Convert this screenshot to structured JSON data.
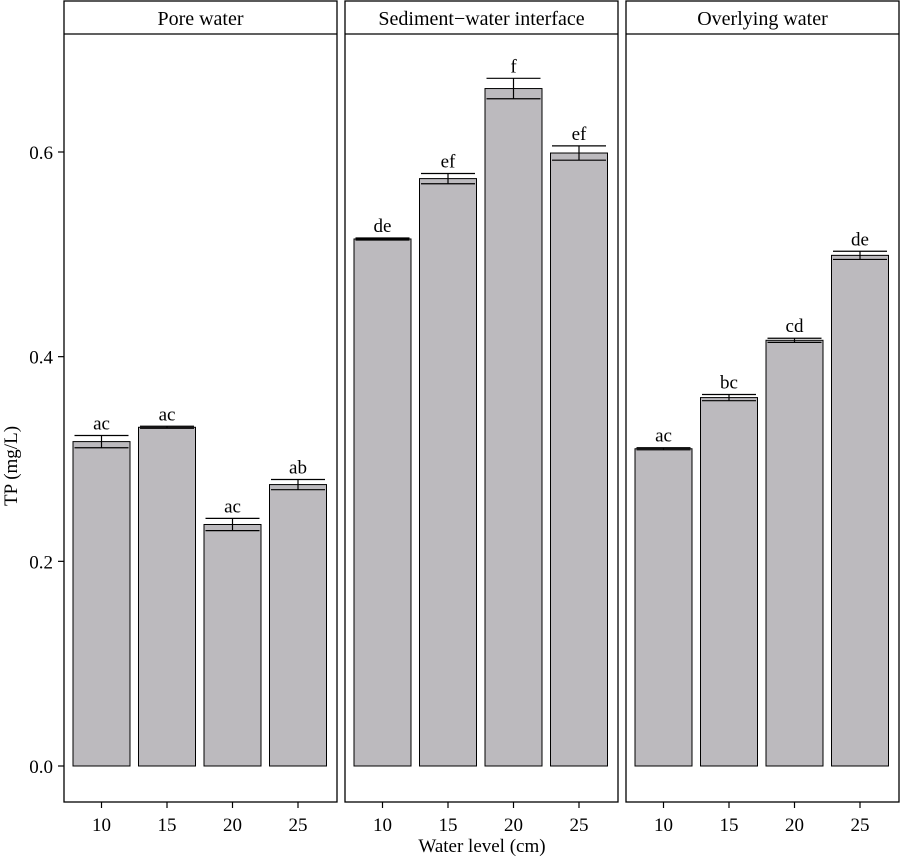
{
  "chart_data": {
    "type": "bar",
    "xlabel": "Water level (cm)",
    "ylabel": "TP (mg/L)",
    "ylim": [
      -0.035,
      0.72
    ],
    "yticks": [
      "0.0",
      "0.2",
      "0.4",
      "0.6"
    ],
    "ytick_values": [
      0.0,
      0.2,
      0.4,
      0.6
    ],
    "categories": [
      "10",
      "15",
      "20",
      "25"
    ],
    "bar_color": "#bcbabe",
    "panels": [
      {
        "title": "Pore water",
        "values": [
          0.317,
          0.331,
          0.236,
          0.275
        ],
        "errors": [
          0.006,
          0.001,
          0.006,
          0.005
        ],
        "labels": [
          "ac",
          "ac",
          "ac",
          "ab"
        ]
      },
      {
        "title": "Sediment−water interface",
        "values": [
          0.515,
          0.574,
          0.662,
          0.599
        ],
        "errors": [
          0.001,
          0.005,
          0.01,
          0.007
        ],
        "labels": [
          "de",
          "ef",
          "f",
          "ef"
        ]
      },
      {
        "title": "Overlying water",
        "values": [
          0.31,
          0.36,
          0.416,
          0.499
        ],
        "errors": [
          0.001,
          0.003,
          0.002,
          0.004
        ],
        "labels": [
          "ac",
          "bc",
          "cd",
          "de"
        ]
      }
    ]
  }
}
